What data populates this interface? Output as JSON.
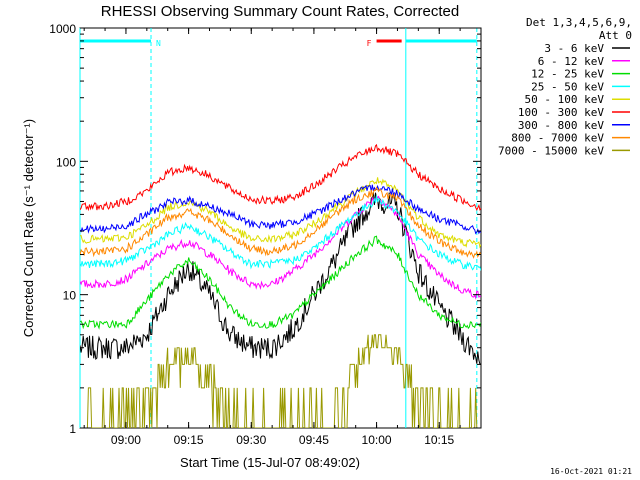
{
  "chart_data": {
    "type": "line",
    "title": "RHESSI Observing Summary Count Rates, Corrected",
    "xlabel": "Start Time (15-Jul-07 08:49:02)",
    "ylabel": "Corrected Count Rate (s⁻¹ detector⁻¹)",
    "y_scale": "log",
    "ylim": [
      1,
      1000
    ],
    "xlim": [
      "08:49",
      "10:25"
    ],
    "x_ticks": [
      "09:00",
      "09:15",
      "09:30",
      "09:45",
      "10:00",
      "10:15"
    ],
    "y_ticks": [
      "1",
      "10",
      "100",
      "1000"
    ],
    "grid": false,
    "legend_position": "right",
    "legend_header": [
      "Det 1,3,4,5,6,9,",
      "Att 0"
    ],
    "x": [
      "08:50",
      "08:55",
      "09:00",
      "09:05",
      "09:10",
      "09:15",
      "09:20",
      "09:25",
      "09:30",
      "09:35",
      "09:40",
      "09:45",
      "09:50",
      "09:55",
      "10:00",
      "10:05",
      "10:10",
      "10:15",
      "10:20",
      "10:24"
    ],
    "series": [
      {
        "name": "3 - 6 keV",
        "color": "#000000",
        "values": [
          4.0,
          4.0,
          4.0,
          5,
          10,
          16,
          10,
          5,
          4.0,
          4.0,
          5.5,
          10,
          18,
          35,
          52,
          45,
          15,
          8,
          5,
          3.5
        ]
      },
      {
        "name": "6 - 12 keV",
        "color": "#ff00ff",
        "values": [
          12,
          12,
          13,
          17,
          22,
          25,
          20,
          15,
          12,
          12,
          15,
          20,
          28,
          40,
          55,
          40,
          20,
          14,
          11,
          10
        ]
      },
      {
        "name": "12 - 25 keV",
        "color": "#00dd00",
        "values": [
          6,
          6,
          6,
          9,
          14,
          18,
          13,
          8,
          6,
          6,
          7,
          10,
          14,
          20,
          26,
          20,
          10,
          7,
          6,
          6
        ]
      },
      {
        "name": "25 - 50 keV",
        "color": "#00ffff",
        "values": [
          17,
          17,
          18,
          22,
          28,
          33,
          27,
          21,
          17,
          17,
          18,
          22,
          30,
          40,
          52,
          42,
          26,
          20,
          17,
          16
        ]
      },
      {
        "name": "50 - 100 keV",
        "color": "#dddd00",
        "values": [
          26,
          26,
          27,
          33,
          45,
          50,
          42,
          32,
          26,
          26,
          28,
          34,
          45,
          58,
          72,
          60,
          38,
          28,
          25,
          24
        ]
      },
      {
        "name": "100 - 300 keV",
        "color": "#ff0000",
        "values": [
          46,
          46,
          50,
          60,
          82,
          90,
          78,
          62,
          52,
          50,
          54,
          65,
          85,
          108,
          128,
          112,
          80,
          62,
          52,
          46
        ]
      },
      {
        "name": "300 - 800 keV",
        "color": "#0000ff",
        "values": [
          31,
          31,
          33,
          40,
          49,
          51,
          46,
          40,
          34,
          33,
          35,
          40,
          49,
          58,
          65,
          58,
          44,
          37,
          33,
          30
        ]
      },
      {
        "name": "800 - 7000 keV",
        "color": "#ff8800",
        "values": [
          21,
          21,
          22,
          28,
          38,
          42,
          36,
          28,
          22,
          21,
          23,
          30,
          40,
          52,
          60,
          52,
          33,
          25,
          21,
          20
        ]
      },
      {
        "name": "7000 - 15000 keV",
        "color": "#999900",
        "values": [
          1,
          1,
          1,
          1.5,
          3,
          3.6,
          2.3,
          1.3,
          1,
          1,
          1,
          1,
          1.3,
          2.8,
          4.6,
          3.5,
          1.6,
          1,
          1,
          1
        ]
      }
    ],
    "annotations": [
      {
        "label": "N",
        "start": "08:49",
        "end": "09:06",
        "color": "#00ffff"
      },
      {
        "label": "F",
        "start": "10:00",
        "end": "10:06",
        "color": "#ff0000"
      },
      {
        "label": "",
        "start": "10:07",
        "end": "10:24",
        "color": "#00ffff"
      }
    ],
    "footer_timestamp": "16-Oct-2021 01:21"
  }
}
